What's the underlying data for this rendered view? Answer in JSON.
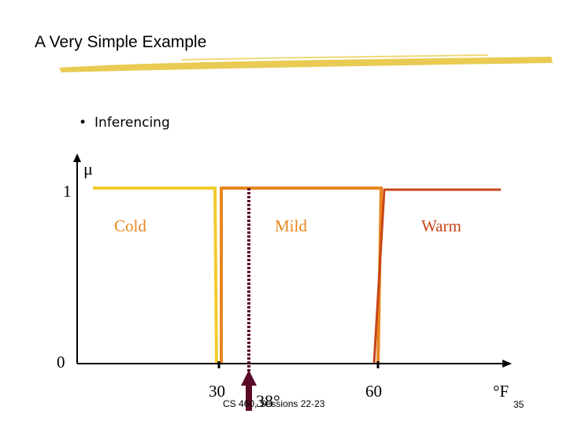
{
  "slide": {
    "title": "A Very Simple Example",
    "bullet": "Inferencing",
    "footer": "CS 460,  Sessions 22-23",
    "page_number": "35"
  },
  "colors": {
    "underline": "#E8C84A",
    "cold": "#F2CB2E",
    "mild": "#E8861E",
    "warm": "#C8441A",
    "marker": "#5A0A28",
    "axis": "#000000"
  },
  "chart_data": {
    "type": "line",
    "ylabel": "μ",
    "xlabel": "°F",
    "y_ticks": [
      "1",
      "0"
    ],
    "x_ticks": [
      {
        "value": 30,
        "label": "30"
      },
      {
        "value": 60,
        "label": "60"
      }
    ],
    "marker": {
      "value": 38,
      "label": "38°"
    },
    "xlim": [
      0,
      90
    ],
    "ylim": [
      0,
      1
    ],
    "series": [
      {
        "name": "Cold",
        "x": [
          0,
          29.5,
          29.5
        ],
        "y": [
          1,
          1,
          0
        ]
      },
      {
        "name": "Mild",
        "x": [
          30.5,
          30.5,
          60.5,
          60.5
        ],
        "y": [
          0,
          1,
          1,
          0
        ]
      },
      {
        "name": "Warm",
        "x": [
          59.5,
          60.5,
          90
        ],
        "y": [
          0,
          1,
          1
        ]
      }
    ]
  }
}
